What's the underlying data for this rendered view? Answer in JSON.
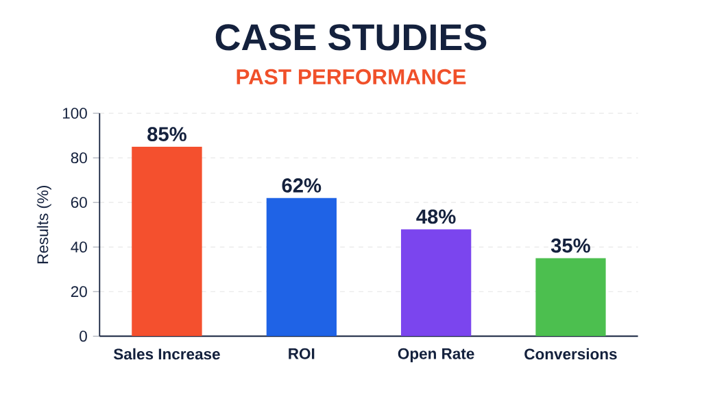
{
  "chart_data": {
    "type": "bar",
    "title": "CASE STUDIES",
    "subtitle": "PAST PERFORMANCE",
    "ylabel": "Results (%)",
    "categories": [
      "Sales Increase",
      "ROI",
      "Open Rate",
      "Conversions"
    ],
    "values": [
      85,
      62,
      48,
      35
    ],
    "colors": [
      "#f4502e",
      "#1f63e6",
      "#7b45ee",
      "#4cbf4f"
    ],
    "value_labels": [
      "85%",
      "62%",
      "48%",
      "35%"
    ],
    "ylim": [
      0,
      100
    ],
    "yticks": [
      0,
      20,
      40,
      60,
      80,
      100
    ],
    "grid": "y"
  }
}
